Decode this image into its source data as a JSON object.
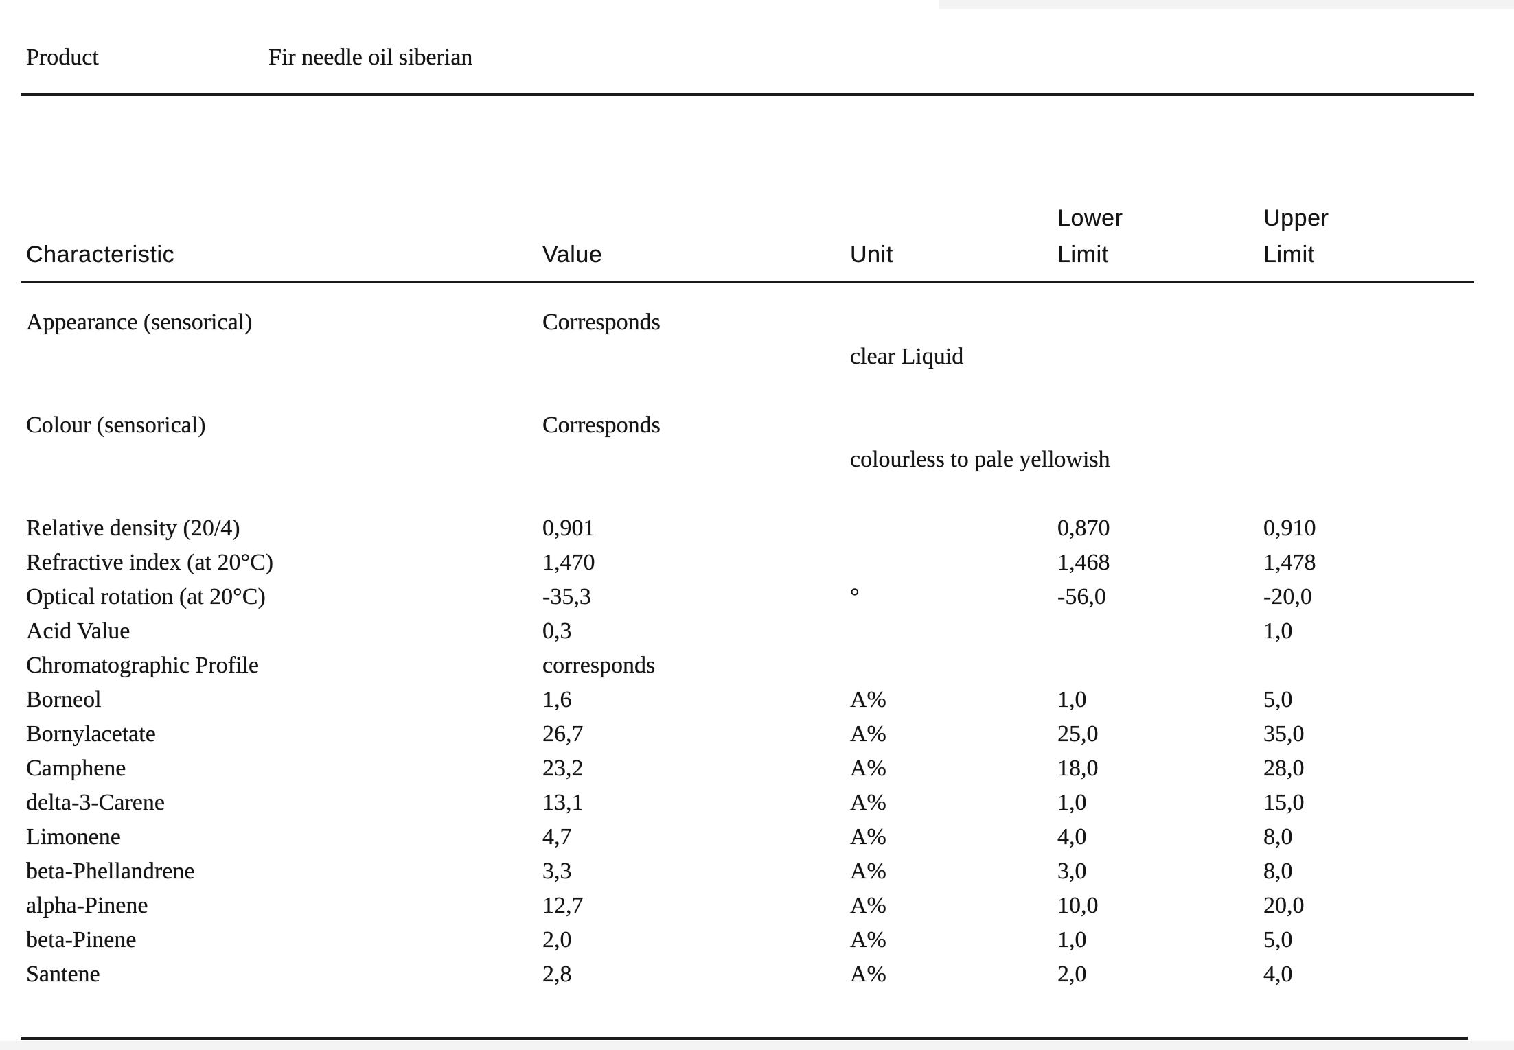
{
  "document": {
    "product_label": "Product",
    "product_name": "Fir needle oil siberian"
  },
  "table": {
    "headers": {
      "characteristic": "Characteristic",
      "value": "Value",
      "unit": "Unit",
      "lower_line1": "Lower",
      "lower_line2": "Limit",
      "upper_line1": "Upper",
      "upper_line2": "Limit"
    },
    "rows": [
      {
        "characteristic": "Appearance (sensorical)",
        "value": "Corresponds",
        "unit": "",
        "lower": "",
        "upper": "",
        "note": "clear Liquid"
      },
      {
        "characteristic": "Colour (sensorical)",
        "value": "Corresponds",
        "unit": "",
        "lower": "",
        "upper": "",
        "note": "colourless to pale yellowish"
      },
      {
        "characteristic": "Relative density (20/4)",
        "value": "0,901",
        "unit": "",
        "lower": "0,870",
        "upper": "0,910"
      },
      {
        "characteristic": "Refractive index (at 20°C)",
        "value": "1,470",
        "unit": "",
        "lower": "1,468",
        "upper": "1,478"
      },
      {
        "characteristic": "Optical rotation (at 20°C)",
        "value": "-35,3",
        "unit": "°",
        "lower": "-56,0",
        "upper": "-20,0"
      },
      {
        "characteristic": "Acid Value",
        "value": "0,3",
        "unit": "",
        "lower": "",
        "upper": "1,0"
      },
      {
        "characteristic": "Chromatographic Profile",
        "value": "corresponds",
        "unit": "",
        "lower": "",
        "upper": ""
      },
      {
        "characteristic": "Borneol",
        "value": "1,6",
        "unit": "A%",
        "lower": "1,0",
        "upper": "5,0"
      },
      {
        "characteristic": "Bornylacetate",
        "value": "26,7",
        "unit": "A%",
        "lower": "25,0",
        "upper": "35,0"
      },
      {
        "characteristic": "Camphene",
        "value": "23,2",
        "unit": "A%",
        "lower": "18,0",
        "upper": "28,0"
      },
      {
        "characteristic": "delta-3-Carene",
        "value": "13,1",
        "unit": "A%",
        "lower": "1,0",
        "upper": "15,0"
      },
      {
        "characteristic": "Limonene",
        "value": "4,7",
        "unit": "A%",
        "lower": "4,0",
        "upper": "8,0"
      },
      {
        "characteristic": "beta-Phellandrene",
        "value": "3,3",
        "unit": "A%",
        "lower": "3,0",
        "upper": "8,0"
      },
      {
        "characteristic": "alpha-Pinene",
        "value": "12,7",
        "unit": "A%",
        "lower": "10,0",
        "upper": "20,0"
      },
      {
        "characteristic": "beta-Pinene",
        "value": "2,0",
        "unit": "A%",
        "lower": "1,0",
        "upper": "5,0"
      },
      {
        "characteristic": "Santene",
        "value": "2,8",
        "unit": "A%",
        "lower": "2,0",
        "upper": "4,0"
      }
    ]
  }
}
